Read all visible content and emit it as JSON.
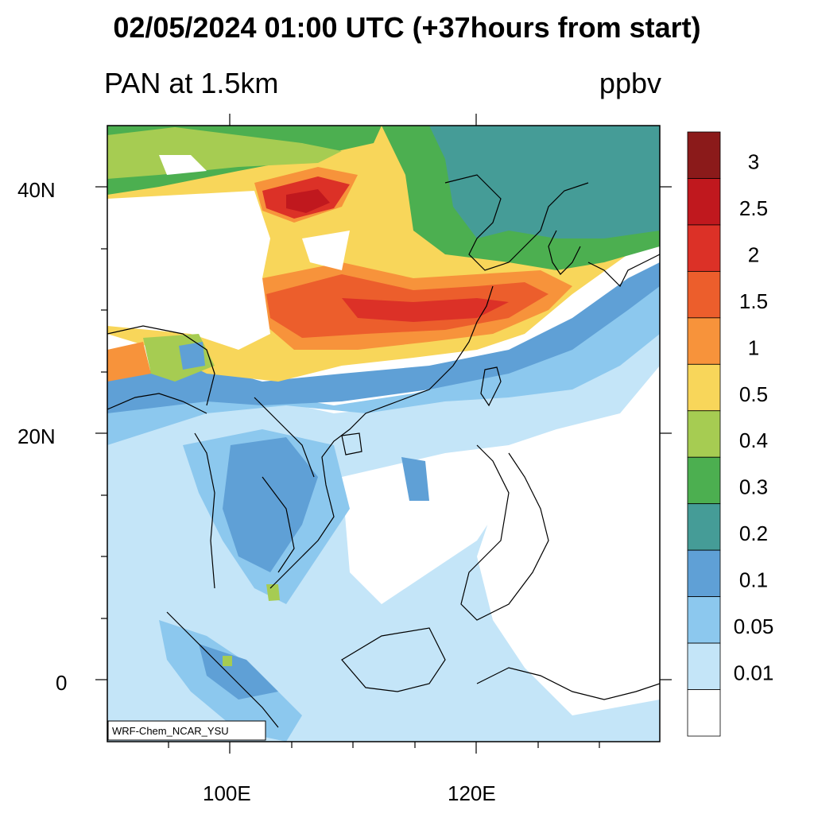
{
  "title": "02/05/2024 01:00 UTC (+37hours from start)",
  "variable_label": "PAN at 1.5km",
  "units_label": "ppbv",
  "credit": "WRF-Chem_NCAR_YSU",
  "axes": {
    "lat_ticks": [
      "40N",
      "20N",
      "0"
    ],
    "lon_ticks": [
      "100E",
      "120E"
    ]
  },
  "colorbar": {
    "labels": [
      "3",
      "2.5",
      "2",
      "1.5",
      "1",
      "0.5",
      "0.4",
      "0.3",
      "0.2",
      "0.1",
      "0.05",
      "0.01"
    ],
    "colors": [
      "#8b1a1a",
      "#c0181e",
      "#dc3127",
      "#ec5e2c",
      "#f7933b",
      "#f8d65a",
      "#a6cc52",
      "#4caf50",
      "#459c97",
      "#5fa0d6",
      "#8cc8ee",
      "#c4e5f8",
      "#ffffff"
    ]
  }
}
